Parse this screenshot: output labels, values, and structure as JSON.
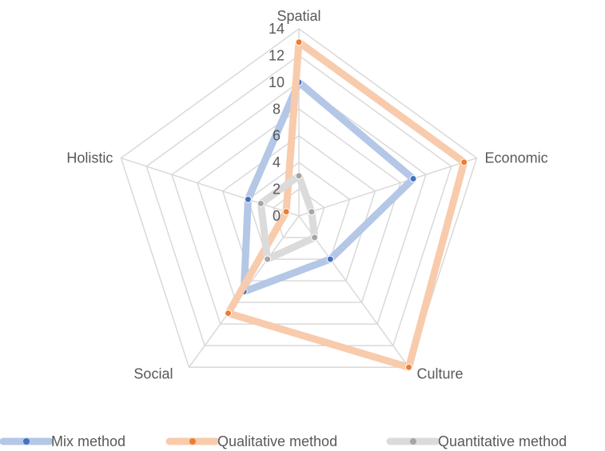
{
  "chart_data": {
    "type": "radar",
    "axes": [
      "Spatial",
      "Economic",
      "Culture",
      "Social",
      "Holistic"
    ],
    "rmin": 0,
    "rmax": 14,
    "ticks": [
      "0",
      "2",
      "4",
      "6",
      "8",
      "10",
      "12",
      "14"
    ],
    "tick_values": [
      0,
      2,
      4,
      6,
      8,
      10,
      12,
      14
    ],
    "grid": true,
    "legend_position": "bottom",
    "series": [
      {
        "name": "Mix method",
        "values": [
          10,
          9,
          4,
          7,
          4
        ],
        "color": "#4472C4",
        "line_color": "#B4C7E7"
      },
      {
        "name": "Qualitative method",
        "values": [
          13,
          13,
          14,
          9,
          1
        ],
        "color": "#ED7D31",
        "line_color": "#F8CBAD"
      },
      {
        "name": "Quantitative method",
        "values": [
          3,
          1,
          2,
          4,
          3
        ],
        "color": "#A5A5A5",
        "line_color": "#DBDBDB"
      }
    ]
  }
}
